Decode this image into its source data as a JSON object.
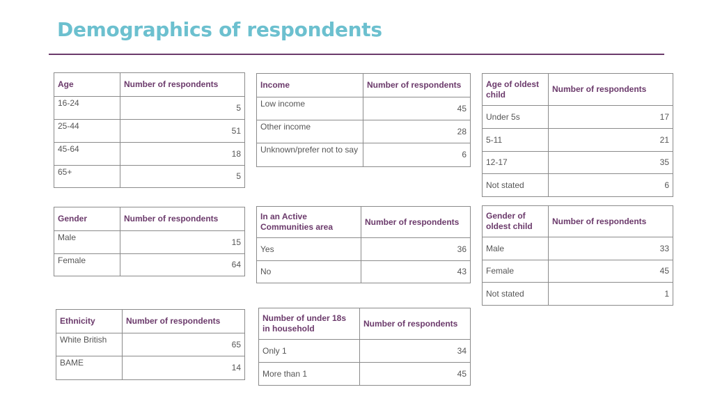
{
  "page": {
    "title": "Demographics of respondents"
  },
  "tables": {
    "age": {
      "headers": [
        "Age",
        "Number of respondents"
      ],
      "rows": [
        {
          "label": "16-24",
          "value": "5"
        },
        {
          "label": "25-44",
          "value": "51"
        },
        {
          "label": "45-64",
          "value": "18"
        },
        {
          "label": "65+",
          "value": "5"
        }
      ]
    },
    "income": {
      "headers": [
        "Income",
        "Number of respondents"
      ],
      "rows": [
        {
          "label": "Low income",
          "value": "45"
        },
        {
          "label": "Other income",
          "value": "28"
        },
        {
          "label": "Unknown/prefer not to say",
          "value": "6"
        }
      ]
    },
    "age_oldest_child": {
      "headers": [
        "Age of oldest child",
        "Number of respondents"
      ],
      "rows": [
        {
          "label": "Under 5s",
          "value": "17"
        },
        {
          "label": "5-11",
          "value": "21"
        },
        {
          "label": "12-17",
          "value": "35"
        },
        {
          "label": "Not stated",
          "value": "6"
        }
      ]
    },
    "gender": {
      "headers": [
        "Gender",
        "Number of respondents"
      ],
      "rows": [
        {
          "label": "Male",
          "value": "15"
        },
        {
          "label": "Female",
          "value": "64"
        }
      ]
    },
    "active_communities": {
      "headers": [
        "In an Active Communities area",
        "Number of respondents"
      ],
      "rows": [
        {
          "label": "Yes",
          "value": "36"
        },
        {
          "label": "No",
          "value": "43"
        }
      ]
    },
    "gender_oldest_child": {
      "headers": [
        "Gender of oldest child",
        "Number of respondents"
      ],
      "rows": [
        {
          "label": "Male",
          "value": "33"
        },
        {
          "label": "Female",
          "value": "45"
        },
        {
          "label": "Not stated",
          "value": "1"
        }
      ]
    },
    "ethnicity": {
      "headers": [
        "Ethnicity",
        "Number of respondents"
      ],
      "rows": [
        {
          "label": "White British",
          "value": "65"
        },
        {
          "label": "BAME",
          "value": "14"
        }
      ]
    },
    "under18_household": {
      "headers": [
        "Number of under 18s in household",
        "Number of respondents"
      ],
      "rows": [
        {
          "label": "Only 1",
          "value": "34"
        },
        {
          "label": "More than 1",
          "value": "45"
        }
      ]
    }
  }
}
